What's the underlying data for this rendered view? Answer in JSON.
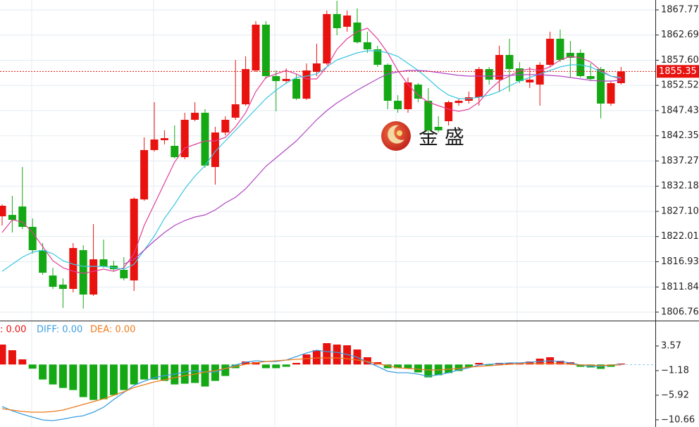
{
  "chart_data": [
    {
      "type": "candlestick",
      "ylim": [
        1805.05,
        1869.76
      ],
      "yticks": [
        1867.77,
        1862.69,
        {
          "value": 1857.6,
          "label": "1857.60"
        },
        1852.52,
        1847.43,
        1842.35,
        1837.27,
        1832.18,
        {
          "value": 1827.1,
          "label": "1827.10"
        },
        1822.01,
        1816.93,
        1811.84,
        1806.76
      ],
      "grid": true,
      "up_color": "#e8120f",
      "down_color": "#14a814",
      "last_price": 1855.35,
      "last_price_color": "#e8120f",
      "watermark": "金 盛",
      "candles": {
        "open": [
          1826.1,
          1826.38,
          1828.08,
          1823.97,
          1819.27,
          1814.15,
          1812.31,
          1811.45,
          1819.27,
          1810.31,
          1817.42,
          1816.14,
          1815.29,
          1813.16,
          1829.51,
          1839.47,
          1841.46,
          1840.32,
          1838.04,
          1845.58,
          1847.0,
          1836.05,
          1843.02,
          1846.01,
          1848.71,
          1855.54,
          1864.78,
          1854.4,
          1853.4,
          1853.83,
          1849.85,
          1855.25,
          1856.96,
          1866.92,
          1864.36,
          1865.21,
          1861.23,
          1859.8,
          1856.68,
          1849.42,
          1847.72,
          1852.69,
          1849.42,
          1844.16,
          1845.3,
          1848.98,
          1849.42,
          1850.13,
          1855.82,
          1853.69,
          1858.67,
          1855.96,
          1853.12,
          1852.69,
          1856.68,
          1861.94,
          1859.09,
          1859.09,
          1854.4,
          1855.82,
          1848.85,
          1852.98
        ],
        "high": [
          1828.52,
          1830.22,
          1836.05,
          1825.67,
          1820.7,
          1815.72,
          1813.58,
          1820.7,
          1820.27,
          1824.53,
          1821.41,
          1817.14,
          1817.85,
          1829.94,
          1842.03,
          1849.14,
          1843.45,
          1844.44,
          1847.0,
          1849.14,
          1847.72,
          1844.16,
          1846.29,
          1857.67,
          1858.38,
          1865.49,
          1865.49,
          1855.54,
          1855.96,
          1854.83,
          1856.96,
          1860.94,
          1867.63,
          1869.6,
          1867.63,
          1868.05,
          1863.36,
          1860.52,
          1856.96,
          1850.56,
          1854.12,
          1852.98,
          1851.98,
          1846.29,
          1849.42,
          1849.85,
          1851.27,
          1856.25,
          1856.25,
          1860.52,
          1861.94,
          1857.24,
          1856.25,
          1857.24,
          1863.36,
          1863.79,
          1861.51,
          1859.8,
          1856.96,
          1856.25,
          1853.4,
          1856.25
        ],
        "low": [
          1824.25,
          1822.83,
          1823.54,
          1818.56,
          1814.29,
          1811.45,
          1807.61,
          1810.74,
          1807.46,
          1810.02,
          1815.72,
          1815.01,
          1813.16,
          1811.02,
          1829.23,
          1839.18,
          1840.6,
          1837.76,
          1837.62,
          1845.3,
          1835.91,
          1832.5,
          1842.45,
          1845.58,
          1848.43,
          1855.25,
          1853.83,
          1847.29,
          1852.98,
          1849.56,
          1849.56,
          1854.4,
          1856.68,
          1862.65,
          1863.36,
          1860.94,
          1859.09,
          1856.25,
          1847.72,
          1847.0,
          1847.0,
          1849.14,
          1842.74,
          1843.02,
          1844.44,
          1848.43,
          1848.85,
          1848.43,
          1852.69,
          1851.27,
          1851.27,
          1852.98,
          1851.98,
          1848.43,
          1856.25,
          1857.24,
          1854.12,
          1854.12,
          1853.4,
          1845.87,
          1848.43,
          1852.69
        ],
        "close": [
          1828.23,
          1825.39,
          1823.97,
          1819.27,
          1814.72,
          1811.88,
          1811.45,
          1819.7,
          1810.31,
          1817.42,
          1816.0,
          1815.43,
          1813.58,
          1829.65,
          1839.47,
          1841.6,
          1841.88,
          1838.04,
          1845.58,
          1847.0,
          1836.34,
          1843.02,
          1845.58,
          1848.71,
          1855.82,
          1864.78,
          1854.4,
          1853.4,
          1853.83,
          1849.85,
          1855.54,
          1856.96,
          1866.92,
          1864.07,
          1866.63,
          1861.23,
          1859.8,
          1856.68,
          1849.42,
          1847.72,
          1853.12,
          1849.85,
          1843.45,
          1843.45,
          1849.14,
          1849.42,
          1850.13,
          1855.82,
          1853.69,
          1858.67,
          1855.82,
          1853.4,
          1853.69,
          1856.68,
          1861.94,
          1857.67,
          1858.1,
          1854.4,
          1853.83,
          1848.85,
          1852.98,
          1855.35
        ]
      },
      "series": [
        {
          "color": "#e23f98",
          "values": [
            1822.83,
            1825.39,
            1824.96,
            1822.83,
            1819.98,
            1817.14,
            1815.72,
            1815.01,
            1814.58,
            1815.01,
            1815.43,
            1815.01,
            1815.72,
            1818.56,
            1824.25,
            1828.52,
            1832.78,
            1837.05,
            1839.89,
            1840.6,
            1841.32,
            1841.32,
            1842.03,
            1844.16,
            1847.0,
            1851.27,
            1854.12,
            1854.83,
            1855.54,
            1854.83,
            1853.83,
            1853.83,
            1856.25,
            1859.8,
            1861.94,
            1863.36,
            1864.07,
            1861.94,
            1859.09,
            1855.54,
            1852.69,
            1850.56,
            1849.14,
            1848.43,
            1847.72,
            1847.29,
            1847.72,
            1849.14,
            1851.56,
            1853.4,
            1854.4,
            1855.54,
            1855.82,
            1855.54,
            1856.25,
            1857.67,
            1858.38,
            1858.1,
            1857.24,
            1855.54,
            1854.4,
            1853.83
          ]
        },
        {
          "color": "#3cc6e2",
          "values": [
            1815.01,
            1816.43,
            1817.85,
            1818.85,
            1819.27,
            1818.56,
            1817.14,
            1816.43,
            1816.0,
            1816.0,
            1816.0,
            1815.72,
            1815.43,
            1816.43,
            1819.27,
            1822.12,
            1825.67,
            1828.52,
            1831.65,
            1834.2,
            1836.34,
            1839.18,
            1841.32,
            1843.45,
            1845.58,
            1847.72,
            1849.85,
            1851.56,
            1852.98,
            1854.12,
            1854.4,
            1854.83,
            1856.25,
            1857.67,
            1858.38,
            1859.09,
            1859.52,
            1859.52,
            1859.09,
            1858.38,
            1856.96,
            1855.54,
            1853.83,
            1851.98,
            1850.56,
            1849.85,
            1849.85,
            1850.13,
            1850.56,
            1851.27,
            1852.41,
            1853.4,
            1854.12,
            1854.83,
            1855.54,
            1856.25,
            1856.68,
            1856.68,
            1856.25,
            1855.25,
            1854.4,
            1854.12
          ]
        },
        {
          "color": "#b145c4",
          "values": [
            null,
            null,
            null,
            null,
            null,
            null,
            null,
            null,
            null,
            null,
            null,
            null,
            1816.43,
            1817.42,
            1819.27,
            1821.12,
            1822.83,
            1824.25,
            1825.24,
            1825.96,
            1826.38,
            1827.38,
            1828.8,
            1829.94,
            1831.65,
            1833.92,
            1836.2,
            1837.9,
            1839.61,
            1841.32,
            1843.45,
            1845.58,
            1847.43,
            1849.0,
            1850.28,
            1851.56,
            1852.69,
            1853.83,
            1854.83,
            1855.25,
            1855.54,
            1855.54,
            1855.4,
            1855.11,
            1854.83,
            1854.54,
            1854.4,
            1854.4,
            1854.4,
            1854.4,
            1854.54,
            1854.68,
            1854.68,
            1854.68,
            1854.54,
            1854.4,
            1854.12,
            1853.83,
            1853.55,
            1853.4,
            1853.4,
            1853.55
          ]
        }
      ]
    },
    {
      "type": "macd",
      "ylim": [
        -12.04,
        8.32
      ],
      "yticks": [
        3.57,
        {
          "value": -1.18,
          "label": "−1.18"
        },
        {
          "value": -5.92,
          "label": "−5.92"
        },
        {
          "value": -10.66,
          "label": "−10.66"
        }
      ],
      "histogram": {
        "name": ": 0.00",
        "color": "#e8120f",
        "up_color": "#e8120f",
        "down_color": "#14a814",
        "values": [
          3.84,
          2.75,
          0.99,
          -0.8,
          -2.89,
          -3.84,
          -4.52,
          -4.92,
          -6.28,
          -6.83,
          -6.69,
          -5.88,
          -4.92,
          -3.84,
          -2.89,
          -2.89,
          -3.16,
          -3.84,
          -3.7,
          -3.56,
          -4.24,
          -3.16,
          -2.21,
          -0.71,
          0.58,
          0.45,
          -0.71,
          -0.71,
          -0.44,
          0.31,
          1.94,
          2.75,
          4.11,
          3.84,
          3.7,
          2.89,
          1.4,
          0.45,
          -0.71,
          -0.71,
          -0.71,
          -1.52,
          -2.48,
          -2.07,
          -1.65,
          -1.25,
          -0.57,
          0.31,
          -0.23,
          0.31,
          0.31,
          0.31,
          0.58,
          1.13,
          1.4,
          0.72,
          0.45,
          -0.44,
          -0.57,
          -0.84,
          -0.44,
          0.18
        ]
      },
      "series": [
        {
          "name": "DIFF: 0.00",
          "color": "#3a9fe2",
          "values": [
            -8.1,
            -8.92,
            -9.59,
            -10.14,
            -10.68,
            -10.82,
            -10.54,
            -10.14,
            -9.87,
            -9.19,
            -8.24,
            -6.74,
            -5.39,
            -4.03,
            -3.22,
            -2.54,
            -2.13,
            -1.86,
            -1.45,
            -1.18,
            -1.45,
            -1.45,
            -0.77,
            -0.09,
            0.45,
            0.72,
            0.58,
            0.58,
            0.85,
            1.53,
            2.21,
            2.75,
            2.48,
            2.35,
            1.94,
            1.4,
            0.45,
            -0.37,
            -1.32,
            -1.59,
            -1.59,
            -1.86,
            -2.27,
            -1.99,
            -1.59,
            -1.04,
            -0.64,
            -0.09,
            0.04,
            0.18,
            0.31,
            0.31,
            0.45,
            0.58,
            0.72,
            0.58,
            0.31,
            -0.09,
            -0.37,
            -0.37,
            -0.09,
            0.04
          ]
        },
        {
          "name": "DEA: 0.00",
          "color": "#f07a1c",
          "values": [
            -8.51,
            -8.78,
            -9.05,
            -9.19,
            -9.19,
            -9.05,
            -8.78,
            -8.24,
            -7.69,
            -7.15,
            -6.61,
            -5.93,
            -5.25,
            -4.44,
            -3.89,
            -3.35,
            -2.94,
            -2.54,
            -2.13,
            -1.86,
            -1.45,
            -1.18,
            -0.77,
            -0.37,
            0.04,
            0.31,
            0.58,
            0.72,
            0.85,
            0.99,
            1.13,
            1.26,
            1.26,
            1.26,
            1.13,
            0.85,
            0.58,
            0.18,
            -0.23,
            -0.64,
            -0.77,
            -0.91,
            -1.04,
            -1.04,
            -0.91,
            -0.77,
            -0.5,
            -0.37,
            -0.23,
            -0.09,
            0.04,
            0.18,
            0.18,
            0.18,
            0.18,
            0.18,
            0.04,
            -0.09,
            -0.09,
            -0.23,
            -0.09,
            -0.09
          ]
        }
      ]
    }
  ]
}
